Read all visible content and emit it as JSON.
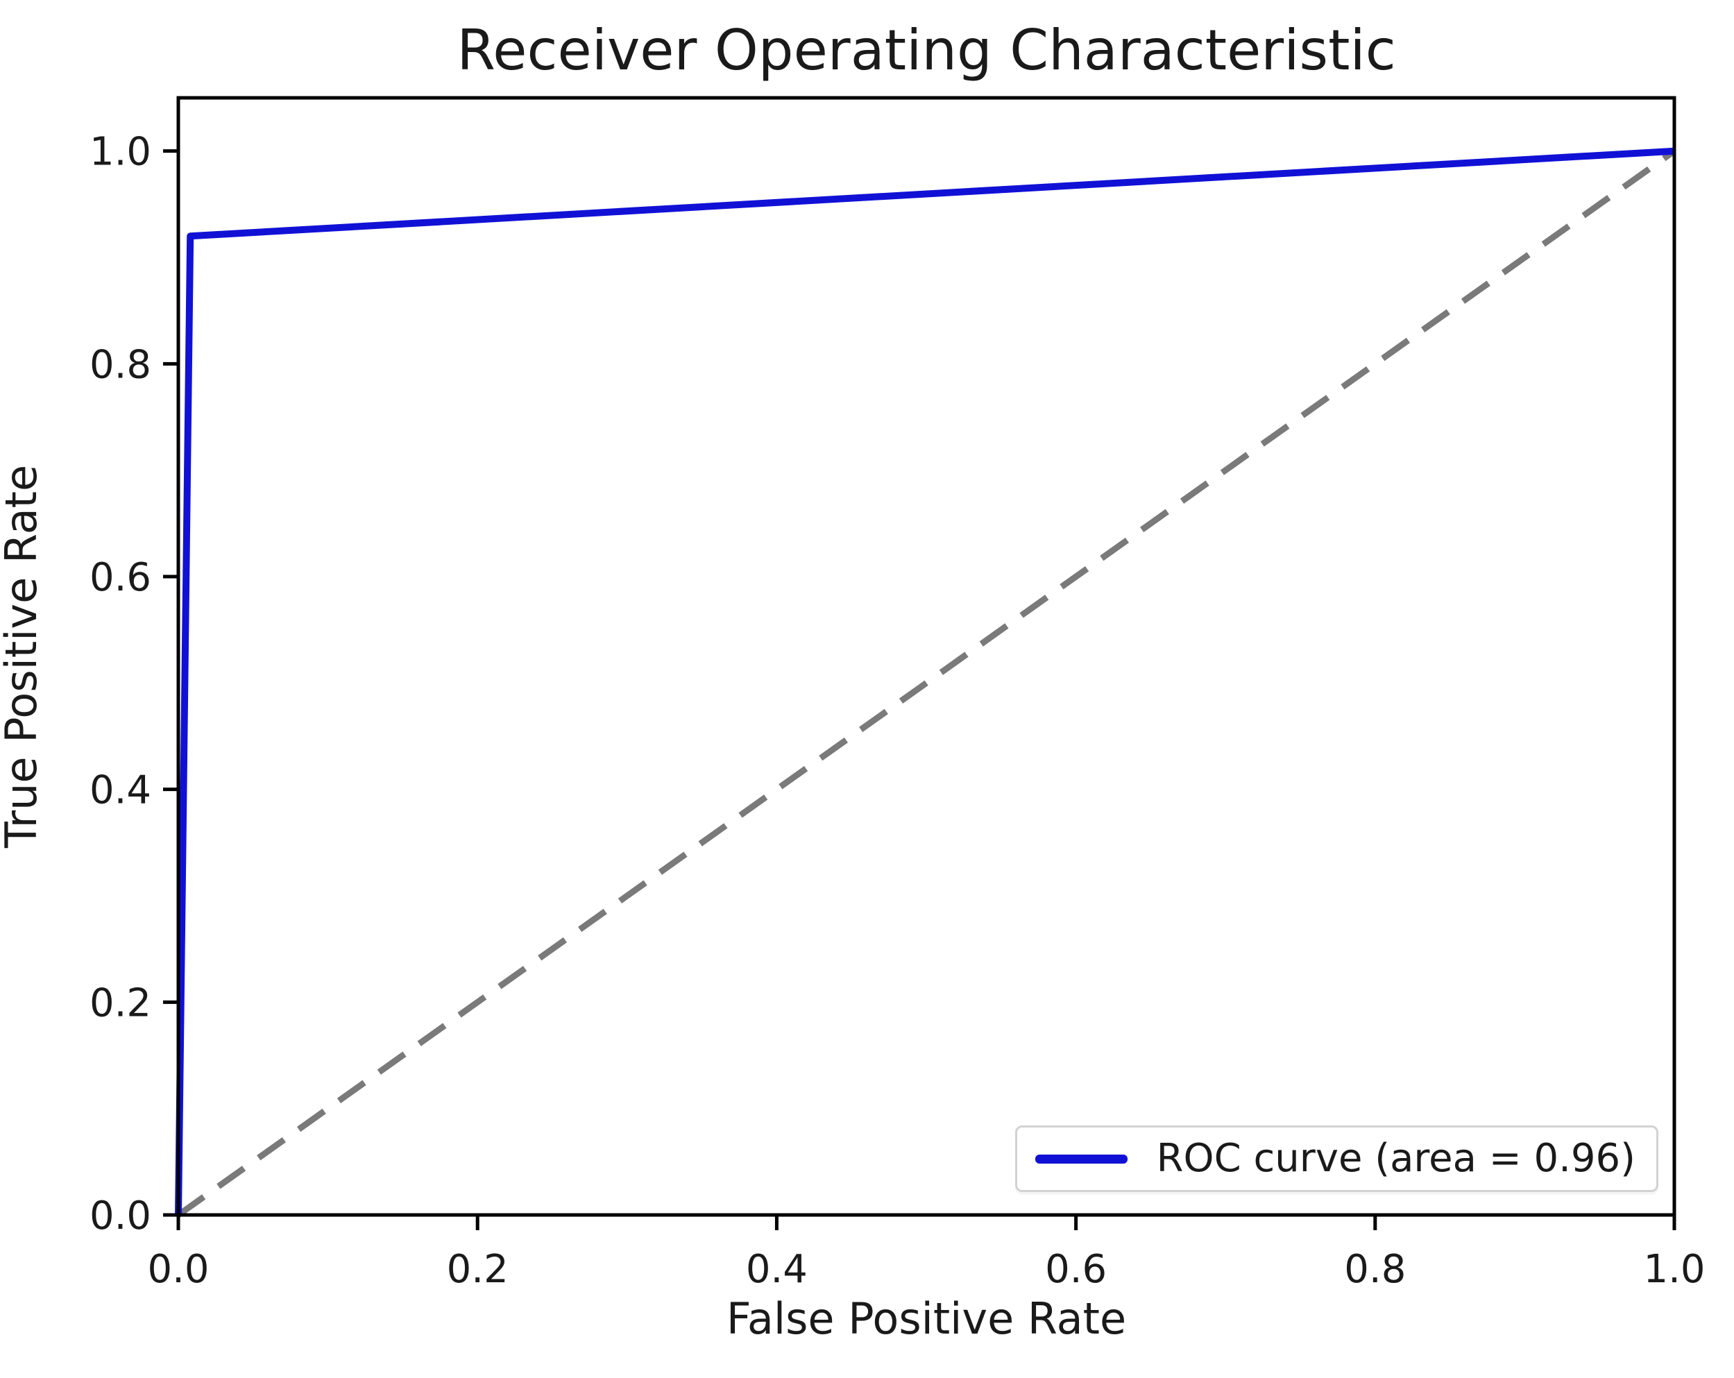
{
  "chart_data": {
    "type": "line",
    "title": "Receiver Operating Characteristic",
    "xlabel": "False Positive Rate",
    "ylabel": "True Positive Rate",
    "xlim": [
      0.0,
      1.0
    ],
    "ylim": [
      0.0,
      1.05
    ],
    "xticks": {
      "values": [
        0.0,
        0.2,
        0.4,
        0.6,
        0.8,
        1.0
      ],
      "labels": [
        "0.0",
        "0.2",
        "0.4",
        "0.6",
        "0.8",
        "1.0"
      ]
    },
    "yticks": {
      "values": [
        0.0,
        0.2,
        0.4,
        0.6,
        0.8,
        1.0
      ],
      "labels": [
        "0.0",
        "0.2",
        "0.4",
        "0.6",
        "0.8",
        "1.0"
      ]
    },
    "grid": false,
    "legend": {
      "position": "lower right",
      "entries": [
        {
          "label": "ROC curve (area = 0.96)",
          "color": "#1111d6",
          "dash": "solid"
        }
      ]
    },
    "series": [
      {
        "name": "chance-diagonal",
        "color": "#7a7a7a",
        "dash": "dashed",
        "line_width": 9,
        "points": [
          [
            0.0,
            0.0
          ],
          [
            1.0,
            1.0
          ]
        ]
      },
      {
        "name": "roc-curve",
        "color": "#1111d6",
        "dash": "solid",
        "line_width": 10,
        "auc": 0.96,
        "points": [
          [
            0.0,
            0.0
          ],
          [
            0.008,
            0.92
          ],
          [
            1.0,
            1.0
          ]
        ]
      }
    ],
    "axis_color": "#000000",
    "tick_label_color": "#1a1a1a"
  }
}
